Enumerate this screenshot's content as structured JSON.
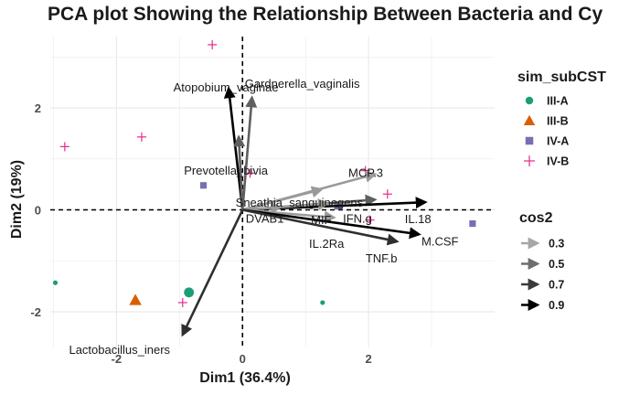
{
  "chart_data": {
    "type": "scatter",
    "title": "PCA plot Showing the Relationship Between Bacteria and Cy",
    "xlabel": "Dim1 (36.4%)",
    "ylabel": "Dim2 (19%)",
    "xlim": [
      -3.05,
      4.0
    ],
    "ylim": [
      -2.7,
      3.4
    ],
    "x_ticks": [
      -2,
      0,
      2
    ],
    "y_ticks": [
      -2,
      0,
      2
    ],
    "grid": true,
    "reference_lines": {
      "x": 0,
      "y": 0,
      "style": "dashed"
    },
    "groups_legend": {
      "title": "sim_subCST",
      "entries": [
        {
          "name": "III-A",
          "color": "#1b9e77",
          "shape": "circle"
        },
        {
          "name": "III-B",
          "color": "#d95f02",
          "shape": "triangle"
        },
        {
          "name": "IV-A",
          "color": "#7570b3",
          "shape": "square"
        },
        {
          "name": "IV-B",
          "color": "#e7298a",
          "shape": "plus"
        }
      ]
    },
    "cos2_legend": {
      "title": "cos2",
      "entries": [
        {
          "label": "0.3",
          "color": "#a6a6a6"
        },
        {
          "label": "0.5",
          "color": "#6e6e6e"
        },
        {
          "label": "0.7",
          "color": "#3a3a3a"
        },
        {
          "label": "0.9",
          "color": "#000000"
        }
      ]
    },
    "points": [
      {
        "group": "III-A",
        "x": -2.97,
        "y": -1.43,
        "size": "small"
      },
      {
        "group": "III-A",
        "x": 1.27,
        "y": -1.82,
        "size": "small"
      },
      {
        "group": "III-A",
        "x": -0.85,
        "y": -1.62,
        "size": "large"
      },
      {
        "group": "III-B",
        "x": -1.7,
        "y": -1.77,
        "size": "large"
      },
      {
        "group": "IV-A",
        "x": -0.62,
        "y": 0.48,
        "size": "medium"
      },
      {
        "group": "IV-A",
        "x": 1.52,
        "y": 0.09,
        "size": "large"
      },
      {
        "group": "IV-A",
        "x": 3.65,
        "y": -0.27,
        "size": "medium"
      },
      {
        "group": "IV-B",
        "x": -0.48,
        "y": 3.24,
        "size": "medium"
      },
      {
        "group": "IV-B",
        "x": -2.82,
        "y": 1.24,
        "size": "medium"
      },
      {
        "group": "IV-B",
        "x": -1.6,
        "y": 1.43,
        "size": "medium"
      },
      {
        "group": "IV-B",
        "x": 0.12,
        "y": 0.72,
        "size": "medium"
      },
      {
        "group": "IV-B",
        "x": -0.95,
        "y": -1.82,
        "size": "medium"
      },
      {
        "group": "IV-B",
        "x": 1.95,
        "y": 0.77,
        "size": "medium"
      },
      {
        "group": "IV-B",
        "x": 2.3,
        "y": 0.31,
        "size": "medium"
      },
      {
        "group": "IV-B",
        "x": 2.02,
        "y": -0.2,
        "size": "medium"
      }
    ],
    "variables": [
      {
        "name": "Atopobium_vaginae",
        "x": -0.22,
        "y": 2.38,
        "cos2": 0.85
      },
      {
        "name": "Gardnerella_vaginalis",
        "x": 0.15,
        "y": 2.2,
        "cos2": 0.6
      },
      {
        "name": "Prevotella_bivia",
        "x": -0.06,
        "y": 1.43,
        "cos2": 0.45
      },
      {
        "name": "Sneathia_sanguinegens",
        "x": 1.25,
        "y": 0.4,
        "cos2": 0.3
      },
      {
        "name": "MCP.3",
        "x": 2.1,
        "y": 0.7,
        "cos2": 0.35
      },
      {
        "name": "IFN.g",
        "x": 2.1,
        "y": 0.2,
        "cos2": 0.5
      },
      {
        "name": "IL.18",
        "x": 2.9,
        "y": 0.15,
        "cos2": 0.95
      },
      {
        "name": "DVAB1",
        "x": 0.6,
        "y": 0.05,
        "cos2": 0.3
      },
      {
        "name": "MIF",
        "x": 1.35,
        "y": 0.12,
        "cos2": 0.3
      },
      {
        "name": "IL.2Ra",
        "x": 1.45,
        "y": -0.15,
        "cos2": 0.3
      },
      {
        "name": "M.CSF",
        "x": 2.8,
        "y": -0.48,
        "cos2": 0.9
      },
      {
        "name": "TNF.b",
        "x": 2.45,
        "y": -0.62,
        "cos2": 0.75
      },
      {
        "name": "Lactobacillus_iners",
        "x": -0.95,
        "y": -2.45,
        "cos2": 0.8
      }
    ]
  }
}
